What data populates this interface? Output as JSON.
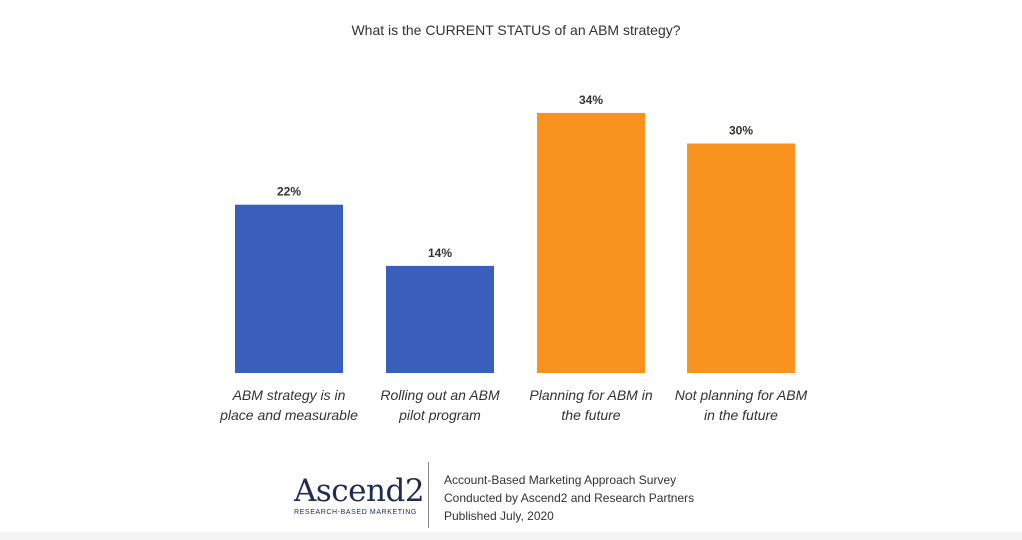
{
  "chart_data": {
    "type": "bar",
    "title": "What is the CURRENT STATUS of an ABM strategy?",
    "categories": [
      [
        "ABM strategy is in",
        "place and measurable"
      ],
      [
        "Rolling out an ABM",
        "pilot program"
      ],
      [
        "Planning for ABM in",
        "the future"
      ],
      [
        "Not planning for ABM",
        "in the future"
      ]
    ],
    "values": [
      22,
      14,
      34,
      30
    ],
    "value_labels": [
      "22%",
      "14%",
      "34%",
      "30%"
    ],
    "colors": [
      "#3a5fbb",
      "#3a5fbb",
      "#f7931e",
      "#f7931e"
    ],
    "ylim": [
      0,
      40
    ],
    "grid": false,
    "legend": "none"
  },
  "footer": {
    "logo_text": "Ascend2",
    "logo_tagline": "RESEARCH-BASED MARKETING",
    "lines": [
      "Account-Based Marketing Approach Survey",
      "Conducted by Ascend2 and Research Partners",
      "Published July, 2020"
    ]
  }
}
